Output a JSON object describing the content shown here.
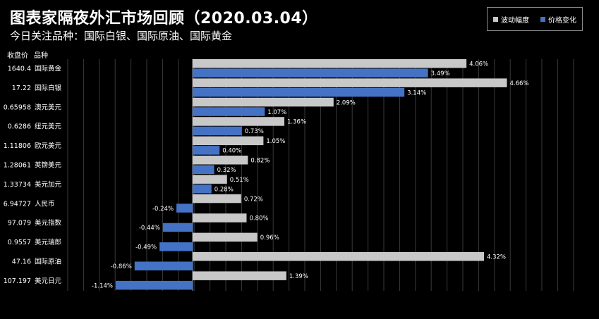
{
  "header": {
    "title": "图表家隔夜外汇市场回顾（2020.03.04）",
    "subtitle": "今日关注品种：国际白银、国际原油、国际黄金"
  },
  "columns": {
    "price_header": "收盘价",
    "name_header": "品种"
  },
  "legend": {
    "volatility_label": "波动幅度",
    "change_label": "价格变化",
    "volatility_color": "#c8c8c8",
    "change_color": "#4472c4"
  },
  "chart_data": {
    "type": "bar",
    "orientation": "horizontal",
    "title": "图表家隔夜外汇市场回顾（2020.03.04）",
    "subtitle": "今日关注品种：国际白银、国际原油、国际黄金",
    "categories": [
      "国际黄金",
      "国际白银",
      "澳元美元",
      "纽元美元",
      "欧元美元",
      "英镑美元",
      "美元加元",
      "人民币",
      "美元指数",
      "美元瑞郎",
      "国际原油",
      "美元日元"
    ],
    "prices": [
      "1640.4",
      "17.22",
      "0.65958",
      "0.6286",
      "1.11806",
      "1.28061",
      "1.33734",
      "6.94727",
      "97.079",
      "0.9557",
      "47.16",
      "107.197"
    ],
    "series": [
      {
        "name": "波动幅度",
        "values": [
          4.06,
          4.66,
          2.09,
          1.36,
          1.05,
          0.82,
          0.51,
          0.72,
          0.8,
          0.96,
          4.32,
          1.39
        ],
        "labels": [
          "4.06%",
          "4.66%",
          "2.09%",
          "1.36%",
          "1.05%",
          "0.82%",
          "0.51%",
          "0.72%",
          "0.80%",
          "0.96%",
          "4.32%",
          "1.39%"
        ]
      },
      {
        "name": "价格变化",
        "values": [
          3.49,
          3.14,
          1.07,
          0.73,
          0.4,
          0.32,
          0.28,
          -0.24,
          -0.44,
          -0.49,
          -0.86,
          -1.14
        ],
        "labels": [
          "3.49%",
          "3.14%",
          "1.07%",
          "0.73%",
          "0.40%",
          "0.32%",
          "0.28%",
          "-0.24%",
          "-0.44%",
          "-0.49%",
          "-0.86%",
          "-1.14%"
        ]
      }
    ],
    "xlim": [
      -1.4,
      5.0
    ],
    "grid": true,
    "legend_position": "top-right"
  }
}
